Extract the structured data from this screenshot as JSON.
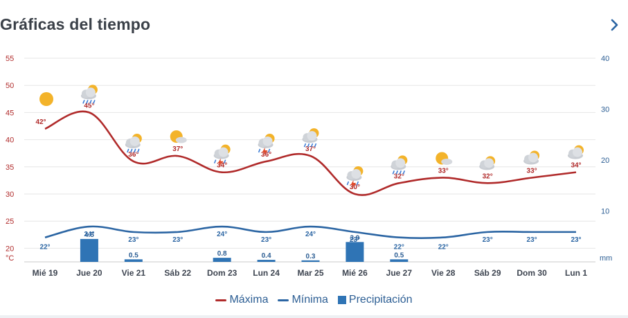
{
  "header": {
    "title": "Gráficas del tiempo",
    "next_icon": "chevron-right-icon"
  },
  "colors": {
    "max": "#b02a2a",
    "min": "#2b65a3",
    "precip": "#2f74b5",
    "grid": "#e6e6e6",
    "axis_left": "#b02a2a",
    "axis_right": "#2b5d93"
  },
  "chart_data": {
    "type": "line",
    "categories": [
      "Mié 19",
      "Jue 20",
      "Vie 21",
      "Sáb 22",
      "Dom 23",
      "Lun 24",
      "Mar 25",
      "Mié 26",
      "Jue 27",
      "Vie 28",
      "Sáb 29",
      "Dom 30",
      "Lun 1"
    ],
    "left_axis": {
      "unit": "°C",
      "ticks": [
        20,
        25,
        30,
        35,
        40,
        45,
        50,
        55
      ],
      "range": [
        17.5,
        55
      ]
    },
    "right_axis": {
      "unit": "mm",
      "ticks": [
        10,
        20,
        30,
        40
      ],
      "range": [
        0,
        40
      ]
    },
    "grid": true,
    "series": [
      {
        "name": "Máxima",
        "axis": "left",
        "values": [
          42,
          45,
          36,
          37,
          34,
          36,
          37,
          30,
          32,
          33,
          32,
          33,
          34
        ],
        "labels": [
          "42°",
          "45°",
          "36°",
          "37°",
          "34°",
          "36°",
          "37°",
          "30°",
          "32°",
          "33°",
          "32°",
          "33°",
          "34°"
        ]
      },
      {
        "name": "Mínima",
        "axis": "left",
        "values": [
          22,
          24,
          23,
          23,
          24,
          23,
          24,
          23,
          22,
          22,
          23,
          23,
          23
        ],
        "labels": [
          "22°",
          "24°",
          "23°",
          "23°",
          "24°",
          "23°",
          "24°",
          "23°",
          "22°",
          "22°",
          "23°",
          "23°",
          "23°"
        ]
      },
      {
        "name": "Precipitación",
        "axis": "right",
        "type": "bar",
        "values": [
          null,
          4.5,
          0.5,
          null,
          0.8,
          0.4,
          0.3,
          3.9,
          0.5,
          null,
          null,
          null,
          null
        ],
        "labels": [
          null,
          "4.5",
          "0.5",
          null,
          "0.8",
          "0.4",
          "0.3",
          "3.9",
          "0.5",
          null,
          null,
          null,
          null
        ]
      }
    ],
    "icons": [
      "sun-icon",
      "cloud-rain-sun-icon",
      "cloud-rain-sun-icon",
      "sun-cloud-icon",
      "cloud-storm-sun-icon",
      "cloud-storm-sun-icon",
      "cloud-rain-sun-icon",
      "cloud-storm-sun-icon",
      "cloud-rain-sun-icon",
      "sun-cloud-icon",
      "cloud-sun-icon",
      "cloud-sun-icon",
      "cloud-sun-icon"
    ],
    "legend": {
      "position": "bottom-center"
    }
  }
}
